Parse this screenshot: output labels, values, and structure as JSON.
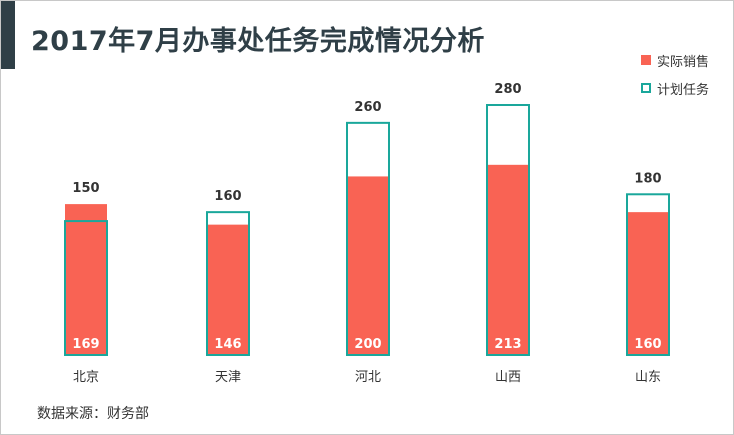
{
  "title": "2017年7月办事处任务完成情况分析",
  "source": "数据来源：财务部",
  "legend": {
    "actual": "实际销售",
    "target": "计划任务"
  },
  "colors": {
    "actual": "#f96354",
    "target": "#1aa79b",
    "title": "#2f3f47"
  },
  "chart_data": {
    "type": "bar",
    "categories": [
      "北京",
      "天津",
      "河北",
      "山西",
      "山东"
    ],
    "series": [
      {
        "name": "实际销售",
        "values": [
          169,
          146,
          200,
          213,
          160
        ]
      },
      {
        "name": "计划任务",
        "values": [
          150,
          160,
          260,
          280,
          180
        ]
      }
    ],
    "ylim": [
      0,
      280
    ],
    "legend_position": "top-right",
    "grid": false
  }
}
